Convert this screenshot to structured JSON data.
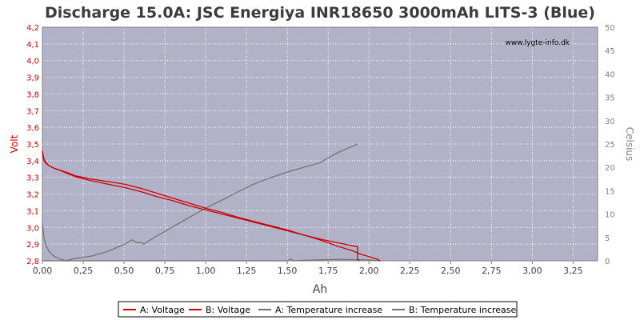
{
  "chart_data": {
    "type": "line",
    "title": "Discharge 15.0A: JSC Energiya INR18650 3000mAh LITS-3 (Blue)",
    "watermark": "www.lygte-info.dk",
    "xlabel": "Ah",
    "ylabel_left": "Volt",
    "ylabel_right": "Celsius",
    "xlim": [
      0,
      3.4
    ],
    "ylim_left": [
      2.8,
      4.2
    ],
    "ylim_right": [
      0,
      50
    ],
    "x_ticks": [
      "0,00",
      "0,25",
      "0,50",
      "0,75",
      "1,00",
      "1,25",
      "1,50",
      "1,75",
      "2,00",
      "2,25",
      "2,50",
      "2,75",
      "3,00",
      "3,25"
    ],
    "y_left_ticks": [
      "2,8",
      "2,9",
      "3,0",
      "3,1",
      "3,2",
      "3,3",
      "3,4",
      "3,5",
      "3,6",
      "3,7",
      "3,8",
      "3,9",
      "4,0",
      "4,1",
      "4,2"
    ],
    "y_right_ticks": [
      "0",
      "5",
      "10",
      "15",
      "20",
      "25",
      "30",
      "35",
      "40",
      "45",
      "50"
    ],
    "grid": true,
    "legend_position": "bottom",
    "colors": {
      "plot_bg": "#b1b1c8",
      "grid": "#ffffff",
      "voltage": "#cc0000",
      "temperature": "#707070",
      "left_axis": "#cc0000",
      "right_axis": "#808080"
    },
    "series": [
      {
        "name": "A: Voltage",
        "axis": "left",
        "color": "#cc0000",
        "x": [
          0,
          0.005,
          0.01,
          0.02,
          0.04,
          0.07,
          0.1,
          0.15,
          0.2,
          0.3,
          0.4,
          0.5,
          0.6,
          0.7,
          0.8,
          0.9,
          1.0,
          1.1,
          1.2,
          1.3,
          1.4,
          1.5,
          1.6,
          1.7,
          1.8,
          1.9,
          1.93,
          1.93,
          1.94
        ],
        "y": [
          3.46,
          3.43,
          3.41,
          3.39,
          3.37,
          3.355,
          3.345,
          3.325,
          3.305,
          3.28,
          3.26,
          3.24,
          3.215,
          3.185,
          3.16,
          3.13,
          3.105,
          3.08,
          3.055,
          3.03,
          3.005,
          2.98,
          2.955,
          2.93,
          2.91,
          2.89,
          2.885,
          2.81,
          2.8
        ]
      },
      {
        "name": "B: Voltage",
        "axis": "left",
        "color": "#cc0000",
        "x": [
          0,
          0.005,
          0.01,
          0.02,
          0.04,
          0.07,
          0.1,
          0.15,
          0.2,
          0.3,
          0.4,
          0.5,
          0.6,
          0.7,
          0.8,
          0.9,
          1.0,
          1.1,
          1.2,
          1.3,
          1.4,
          1.5,
          1.6,
          1.7,
          1.8,
          1.9,
          1.95,
          2.0,
          2.05,
          2.07
        ],
        "y": [
          3.45,
          3.42,
          3.4,
          3.385,
          3.37,
          3.355,
          3.345,
          3.33,
          3.31,
          3.29,
          3.275,
          3.26,
          3.235,
          3.205,
          3.175,
          3.145,
          3.115,
          3.09,
          3.06,
          3.035,
          3.01,
          2.985,
          2.955,
          2.925,
          2.89,
          2.86,
          2.84,
          2.825,
          2.81,
          2.8
        ]
      },
      {
        "name": "A: Temperature increase",
        "axis": "right",
        "color": "#707070",
        "x": [
          0,
          0.01,
          0.02,
          0.04,
          0.07,
          0.1,
          0.14,
          0.2,
          0.3,
          0.4,
          0.5,
          0.55,
          0.58,
          0.6,
          0.62,
          0.7,
          0.8,
          0.9,
          1.0,
          1.1,
          1.2,
          1.3,
          1.4,
          1.5,
          1.6,
          1.7,
          1.75,
          1.8,
          1.85,
          1.9,
          1.93
        ],
        "y": [
          8,
          5,
          3.5,
          2,
          1,
          0.5,
          0,
          0.5,
          1,
          2,
          3.5,
          4.5,
          3.8,
          4,
          3.6,
          5.3,
          7.3,
          9.3,
          11.3,
          13,
          14.8,
          16.5,
          17.8,
          19,
          20,
          21,
          22,
          23,
          23.8,
          24.5,
          25
        ]
      },
      {
        "name": "B: Temperature increase",
        "axis": "right",
        "color": "#707070",
        "x": [
          0,
          0.2,
          0.5,
          1.0,
          1.5,
          1.52,
          1.54,
          1.6,
          1.8,
          2.0,
          2.07
        ],
        "y": [
          0,
          0,
          0,
          0,
          0,
          0.4,
          0,
          0.1,
          0.3,
          0.2,
          0
        ]
      }
    ]
  }
}
